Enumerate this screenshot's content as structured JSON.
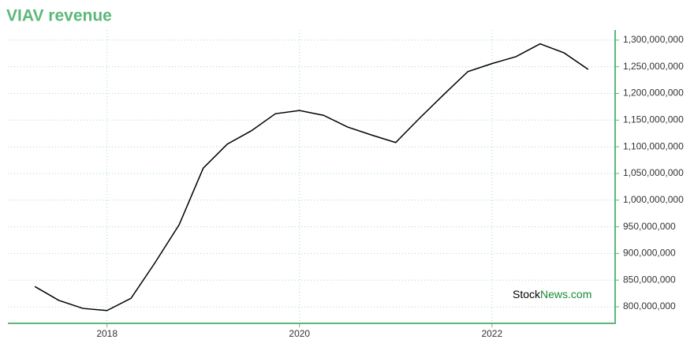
{
  "chart_data": {
    "type": "line",
    "title": "VIAV revenue",
    "watermark": [
      "Stock",
      "News.com"
    ],
    "x": [
      2017.25,
      2017.5,
      2017.75,
      2018.0,
      2018.25,
      2018.5,
      2018.75,
      2019.0,
      2019.25,
      2019.5,
      2019.75,
      2020.0,
      2020.25,
      2020.5,
      2020.75,
      2021.0,
      2021.25,
      2021.5,
      2021.75,
      2022.0,
      2022.25,
      2022.5,
      2022.75,
      2023.0
    ],
    "series": [
      {
        "name": "VIAV revenue",
        "color": "#000000",
        "values": [
          838000000,
          812000000,
          797000000,
          793000000,
          816000000,
          883000000,
          954000000,
          1060000000,
          1105000000,
          1130000000,
          1162000000,
          1168000000,
          1159000000,
          1137000000,
          1122000000,
          1108000000,
          1154000000,
          1198000000,
          1241000000,
          1256000000,
          1269000000,
          1293000000,
          1276000000,
          1245000000
        ]
      }
    ],
    "xlim": [
      2016.97,
      2023.28
    ],
    "xticks": [
      2018,
      2020,
      2022
    ],
    "ylim": [
      769000000,
      1319000000
    ],
    "yticks": [
      {
        "value": 800000000,
        "label": "800,000,000"
      },
      {
        "value": 850000000,
        "label": "850,000,000"
      },
      {
        "value": 900000000,
        "label": "900,000,000"
      },
      {
        "value": 950000000,
        "label": "950,000,000"
      },
      {
        "value": 1000000000,
        "label": "1,000,000,000"
      },
      {
        "value": 1050000000,
        "label": "1,050,000,000"
      },
      {
        "value": 1100000000,
        "label": "1,100,000,000"
      },
      {
        "value": 1150000000,
        "label": "1,150,000,000"
      },
      {
        "value": 1200000000,
        "label": "1,200,000,000"
      },
      {
        "value": 1250000000,
        "label": "1,250,000,000"
      },
      {
        "value": 1300000000,
        "label": "1,300,000,000"
      }
    ],
    "grid": true
  }
}
